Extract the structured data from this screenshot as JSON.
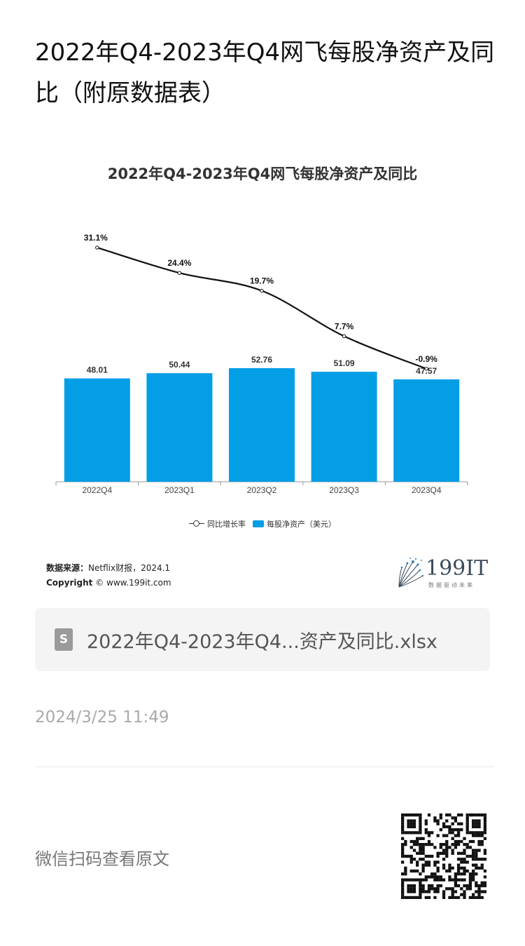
{
  "page": {
    "title": "2022年Q4-2023年Q4网飞每股净资产及同比（附原数据表）"
  },
  "chart": {
    "source_label": "数据来源：",
    "source_value": "Netflix财报，2024.1",
    "copyright_label": "Copyright",
    "copyright_value": "© www.199it.com",
    "logo_text": "199IT",
    "logo_sub": "数据驱动未来"
  },
  "chart_data": {
    "type": "bar",
    "title": "2022年Q4-2023年Q4网飞每股净资产及同比",
    "categories": [
      "2022Q4",
      "2023Q1",
      "2023Q2",
      "2023Q3",
      "2023Q4"
    ],
    "series": [
      {
        "name": "每股净资产（美元）",
        "type": "bar",
        "values": [
          48.01,
          50.44,
          52.76,
          51.09,
          47.57
        ],
        "labels": [
          "48.01",
          "50.44",
          "52.76",
          "51.09",
          "47.57"
        ],
        "color": "#039ee6"
      },
      {
        "name": "同比增长率",
        "type": "line",
        "values": [
          31.1,
          24.4,
          19.7,
          7.7,
          -0.9
        ],
        "labels": [
          "31.1%",
          "24.4%",
          "19.7%",
          "7.7%",
          "-0.9%"
        ],
        "color": "#111111"
      }
    ],
    "legend_position": "bottom",
    "grid": false
  },
  "file": {
    "icon": "spreadsheet-file-icon",
    "icon_letter": "S",
    "name": "2022年Q4-2023年Q4...资产及同比.xlsx"
  },
  "meta": {
    "timestamp": "2024/3/25 11:49",
    "wechat_label": "微信扫码查看原文"
  },
  "colors": {
    "bar": "#039ee6",
    "line": "#111111",
    "file_card_bg": "#f4f4f4"
  }
}
